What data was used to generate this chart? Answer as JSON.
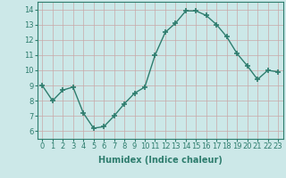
{
  "x": [
    0,
    1,
    2,
    3,
    4,
    5,
    6,
    7,
    8,
    9,
    10,
    11,
    12,
    13,
    14,
    15,
    16,
    17,
    18,
    19,
    20,
    21,
    22,
    23
  ],
  "y": [
    9.0,
    8.0,
    8.7,
    8.9,
    7.2,
    6.2,
    6.3,
    7.0,
    7.8,
    8.5,
    8.9,
    11.0,
    12.5,
    13.1,
    13.9,
    13.9,
    13.6,
    13.0,
    12.2,
    11.1,
    10.3,
    9.4,
    10.0,
    9.9
  ],
  "line_color": "#2e7d6e",
  "marker": "+",
  "markersize": 4.0,
  "markeredgewidth": 1.2,
  "linewidth": 1.0,
  "xlabel": "Humidex (Indice chaleur)",
  "xlabel_fontsize": 7,
  "xlabel_bold": true,
  "xlim": [
    -0.5,
    23.5
  ],
  "ylim": [
    5.5,
    14.5
  ],
  "yticks": [
    6,
    7,
    8,
    9,
    10,
    11,
    12,
    13,
    14
  ],
  "xticks": [
    0,
    1,
    2,
    3,
    4,
    5,
    6,
    7,
    8,
    9,
    10,
    11,
    12,
    13,
    14,
    15,
    16,
    17,
    18,
    19,
    20,
    21,
    22,
    23
  ],
  "xtick_labels": [
    "0",
    "1",
    "2",
    "3",
    "4",
    "5",
    "6",
    "7",
    "8",
    "9",
    "10",
    "11",
    "12",
    "13",
    "14",
    "15",
    "16",
    "17",
    "18",
    "19",
    "20",
    "21",
    "22",
    "23"
  ],
  "background_color": "#cce8e8",
  "grid_color": "#c8a8a8",
  "tick_fontsize": 6,
  "spine_color": "#2e7d6e"
}
